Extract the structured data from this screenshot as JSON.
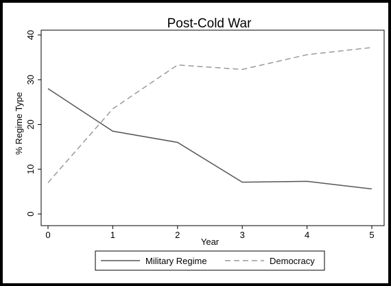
{
  "chart_data": {
    "type": "line",
    "title": "Post-Cold War",
    "xlabel": "Year",
    "ylabel": "% Regime Type",
    "x": [
      0,
      1,
      2,
      3,
      4,
      5
    ],
    "xlim": [
      0,
      5
    ],
    "ylim": [
      0,
      40
    ],
    "xticks": [
      0,
      1,
      2,
      3,
      4,
      5
    ],
    "yticks": [
      0,
      10,
      20,
      30,
      40
    ],
    "grid": false,
    "legend_position": "bottom",
    "series": [
      {
        "name": "Military Regime",
        "values": [
          28,
          18.5,
          16,
          7.1,
          7.3,
          5.6
        ],
        "color": "#555555",
        "style": "solid"
      },
      {
        "name": "Democracy",
        "values": [
          7,
          23.5,
          33.3,
          32.3,
          35.6,
          37.2
        ],
        "color": "#999999",
        "style": "dashed"
      }
    ]
  }
}
